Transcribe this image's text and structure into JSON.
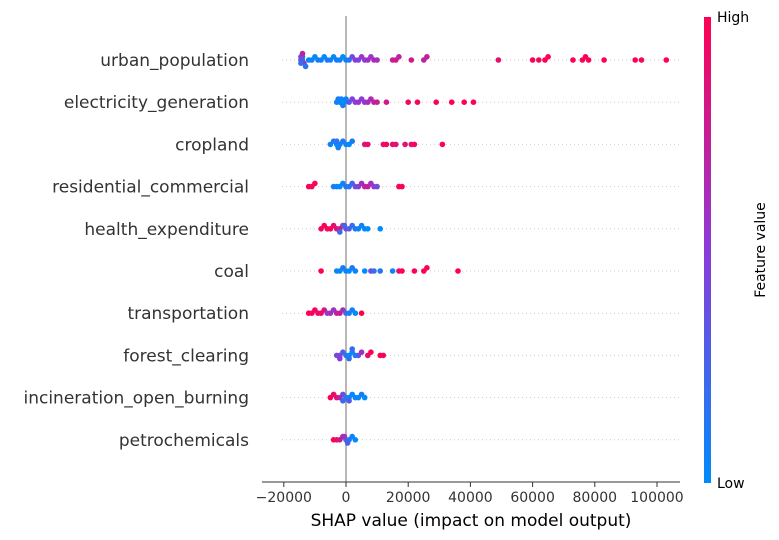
{
  "chart_data": {
    "type": "scatter",
    "subtype": "shap-beeswarm",
    "title": "",
    "xlabel": "SHAP value (impact on model output)",
    "xlim": [
      -20000,
      108000
    ],
    "xticks": [
      -20000,
      0,
      20000,
      40000,
      60000,
      80000,
      100000
    ],
    "xtick_labels": [
      "−20000",
      "0",
      "20000",
      "40000",
      "60000",
      "80000",
      "100000"
    ],
    "zero_line": 0,
    "grid": false,
    "colorbar": {
      "label": "Feature value",
      "high_label": "High",
      "low_label": "Low",
      "low_color": "#008bfb",
      "high_color": "#ff0052"
    },
    "features": [
      {
        "name": "urban_population",
        "points": [
          [
            -14000,
            0.0
          ],
          [
            -14000,
            0.1
          ],
          [
            -14500,
            0.3
          ],
          [
            -14500,
            0.4
          ],
          [
            -13500,
            0.55
          ],
          [
            -14000,
            0.7
          ],
          [
            -14500,
            0.2
          ],
          [
            -13000,
            0.15
          ],
          [
            -12000,
            0.0
          ],
          [
            -11000,
            0.05
          ],
          [
            -10000,
            0.0
          ],
          [
            -9000,
            0.1
          ],
          [
            -8000,
            0.05
          ],
          [
            -7000,
            0.0
          ],
          [
            -6000,
            0.1
          ],
          [
            -5000,
            0.05
          ],
          [
            -4000,
            0.0
          ],
          [
            -3000,
            0.1
          ],
          [
            -2000,
            0.05
          ],
          [
            -1000,
            0.0
          ],
          [
            0,
            0.05
          ],
          [
            1000,
            0.1
          ],
          [
            2000,
            0.4
          ],
          [
            3000,
            0.5
          ],
          [
            4000,
            0.45
          ],
          [
            5000,
            0.55
          ],
          [
            6000,
            0.5
          ],
          [
            7000,
            0.6
          ],
          [
            8000,
            0.55
          ],
          [
            9000,
            0.65
          ],
          [
            10000,
            0.6
          ],
          [
            15000,
            0.75
          ],
          [
            16000,
            0.8
          ],
          [
            17000,
            0.7
          ],
          [
            21000,
            0.8
          ],
          [
            25000,
            0.7
          ],
          [
            26000,
            0.75
          ],
          [
            49000,
            0.9
          ],
          [
            60000,
            1.0
          ],
          [
            62000,
            0.95
          ],
          [
            64000,
            1.0
          ],
          [
            65000,
            1.0
          ],
          [
            73000,
            1.0
          ],
          [
            76000,
            0.95
          ],
          [
            77000,
            1.0
          ],
          [
            78000,
            1.0
          ],
          [
            83000,
            1.0
          ],
          [
            93000,
            1.0
          ],
          [
            95000,
            0.95
          ],
          [
            103000,
            1.0
          ]
        ]
      },
      {
        "name": "electricity_generation",
        "points": [
          [
            -3000,
            0.05
          ],
          [
            -2500,
            0.1
          ],
          [
            -2000,
            0.0
          ],
          [
            -1500,
            0.05
          ],
          [
            -1000,
            0.1
          ],
          [
            -500,
            0.0
          ],
          [
            0,
            0.05
          ],
          [
            1000,
            0.3
          ],
          [
            2000,
            0.45
          ],
          [
            3000,
            0.5
          ],
          [
            4000,
            0.55
          ],
          [
            5000,
            0.5
          ],
          [
            6000,
            0.55
          ],
          [
            7000,
            0.6
          ],
          [
            8000,
            0.65
          ],
          [
            9000,
            0.7
          ],
          [
            10000,
            0.75
          ],
          [
            13000,
            0.8
          ],
          [
            20000,
            0.95
          ],
          [
            23000,
            0.95
          ],
          [
            29000,
            1.0
          ],
          [
            34000,
            1.0
          ],
          [
            38000,
            1.0
          ],
          [
            41000,
            1.0
          ]
        ]
      },
      {
        "name": "cropland",
        "points": [
          [
            -5000,
            0.05
          ],
          [
            -4000,
            0.1
          ],
          [
            -3000,
            0.0
          ],
          [
            -2000,
            0.05
          ],
          [
            -1000,
            0.1
          ],
          [
            0,
            0.05
          ],
          [
            1000,
            0.0
          ],
          [
            2000,
            0.1
          ],
          [
            -3000,
            0.15
          ],
          [
            -2500,
            0.05
          ],
          [
            6000,
            0.85
          ],
          [
            7000,
            0.9
          ],
          [
            12000,
            0.9
          ],
          [
            13000,
            0.95
          ],
          [
            15000,
            0.9
          ],
          [
            16000,
            0.85
          ],
          [
            19000,
            0.85
          ],
          [
            21000,
            0.9
          ],
          [
            22000,
            0.95
          ],
          [
            31000,
            1.0
          ]
        ]
      },
      {
        "name": "residential_commercial",
        "points": [
          [
            -12000,
            1.0
          ],
          [
            -11000,
            0.95
          ],
          [
            -10000,
            1.0
          ],
          [
            -4000,
            0.1
          ],
          [
            -3000,
            0.05
          ],
          [
            -2000,
            0.0
          ],
          [
            -1000,
            0.05
          ],
          [
            0,
            0.1
          ],
          [
            1000,
            0.15
          ],
          [
            2000,
            0.25
          ],
          [
            3000,
            0.35
          ],
          [
            4000,
            0.5
          ],
          [
            5000,
            0.6
          ],
          [
            6000,
            0.7
          ],
          [
            7000,
            0.75
          ],
          [
            8000,
            0.6
          ],
          [
            9000,
            0.5
          ],
          [
            10000,
            0.4
          ],
          [
            17000,
            0.95
          ],
          [
            18000,
            1.0
          ]
        ]
      },
      {
        "name": "health_expenditure",
        "points": [
          [
            -8000,
            0.95
          ],
          [
            -7000,
            1.0
          ],
          [
            -6000,
            0.9
          ],
          [
            -5000,
            1.0
          ],
          [
            -4000,
            0.9
          ],
          [
            -3000,
            0.85
          ],
          [
            -2000,
            0.8
          ],
          [
            -1000,
            0.6
          ],
          [
            0,
            0.4
          ],
          [
            1000,
            0.3
          ],
          [
            2000,
            0.2
          ],
          [
            3000,
            0.1
          ],
          [
            4000,
            0.05
          ],
          [
            5000,
            0.05
          ],
          [
            6000,
            0.0
          ],
          [
            7000,
            0.0
          ],
          [
            -2000,
            0.2
          ],
          [
            -500,
            0.25
          ],
          [
            11000,
            0.0
          ]
        ]
      },
      {
        "name": "coal",
        "points": [
          [
            -8000,
            1.0
          ],
          [
            -3000,
            0.05
          ],
          [
            -2000,
            0.0
          ],
          [
            -1000,
            0.1
          ],
          [
            0,
            0.05
          ],
          [
            1000,
            0.0
          ],
          [
            2000,
            0.1
          ],
          [
            3000,
            0.05
          ],
          [
            6000,
            0.0
          ],
          [
            8000,
            0.4
          ],
          [
            9000,
            0.2
          ],
          [
            11000,
            0.1
          ],
          [
            15000,
            0.05
          ],
          [
            17000,
            0.9
          ],
          [
            18000,
            1.0
          ],
          [
            22000,
            0.95
          ],
          [
            25000,
            1.0
          ],
          [
            26000,
            0.95
          ],
          [
            36000,
            1.0
          ]
        ]
      },
      {
        "name": "transportation",
        "points": [
          [
            -12000,
            1.0
          ],
          [
            -11000,
            0.95
          ],
          [
            -10000,
            1.0
          ],
          [
            -9000,
            0.9
          ],
          [
            -8000,
            0.95
          ],
          [
            -7000,
            0.85
          ],
          [
            -6000,
            0.5
          ],
          [
            -5000,
            0.6
          ],
          [
            -4000,
            0.55
          ],
          [
            -3000,
            0.7
          ],
          [
            -2000,
            0.8
          ],
          [
            -1000,
            0.6
          ],
          [
            0,
            0.2
          ],
          [
            1000,
            0.1
          ],
          [
            2000,
            0.05
          ],
          [
            3000,
            0.0
          ],
          [
            5000,
            1.0
          ]
        ]
      },
      {
        "name": "forest_clearing",
        "points": [
          [
            -3000,
            0.4
          ],
          [
            -2000,
            0.45
          ],
          [
            -1000,
            0.3
          ],
          [
            0,
            0.1
          ],
          [
            1000,
            0.05
          ],
          [
            2000,
            0.0
          ],
          [
            -2000,
            0.5
          ],
          [
            1000,
            0.15
          ],
          [
            2000,
            0.2
          ],
          [
            3000,
            0.1
          ],
          [
            4000,
            0.3
          ],
          [
            5000,
            0.6
          ],
          [
            7000,
            0.9
          ],
          [
            8000,
            1.0
          ],
          [
            11000,
            1.0
          ],
          [
            12000,
            0.95
          ]
        ]
      },
      {
        "name": "incineration_open_burning",
        "points": [
          [
            -5000,
            1.0
          ],
          [
            -4000,
            0.9
          ],
          [
            -3000,
            0.85
          ],
          [
            -2000,
            0.7
          ],
          [
            -1000,
            0.4
          ],
          [
            0,
            0.1
          ],
          [
            1000,
            0.05
          ],
          [
            2000,
            0.0
          ],
          [
            3000,
            0.05
          ],
          [
            4000,
            0.0
          ],
          [
            5000,
            0.1
          ],
          [
            -1000,
            0.2
          ],
          [
            1000,
            0.3
          ],
          [
            6000,
            0.0
          ]
        ]
      },
      {
        "name": "petrochemicals",
        "points": [
          [
            -4000,
            1.0
          ],
          [
            -3000,
            0.9
          ],
          [
            -2000,
            0.8
          ],
          [
            -1000,
            0.7
          ],
          [
            0,
            0.05
          ],
          [
            1000,
            0.1
          ],
          [
            2000,
            0.05
          ],
          [
            3000,
            0.0
          ],
          [
            -500,
            0.6
          ],
          [
            500,
            0.3
          ]
        ]
      }
    ]
  }
}
